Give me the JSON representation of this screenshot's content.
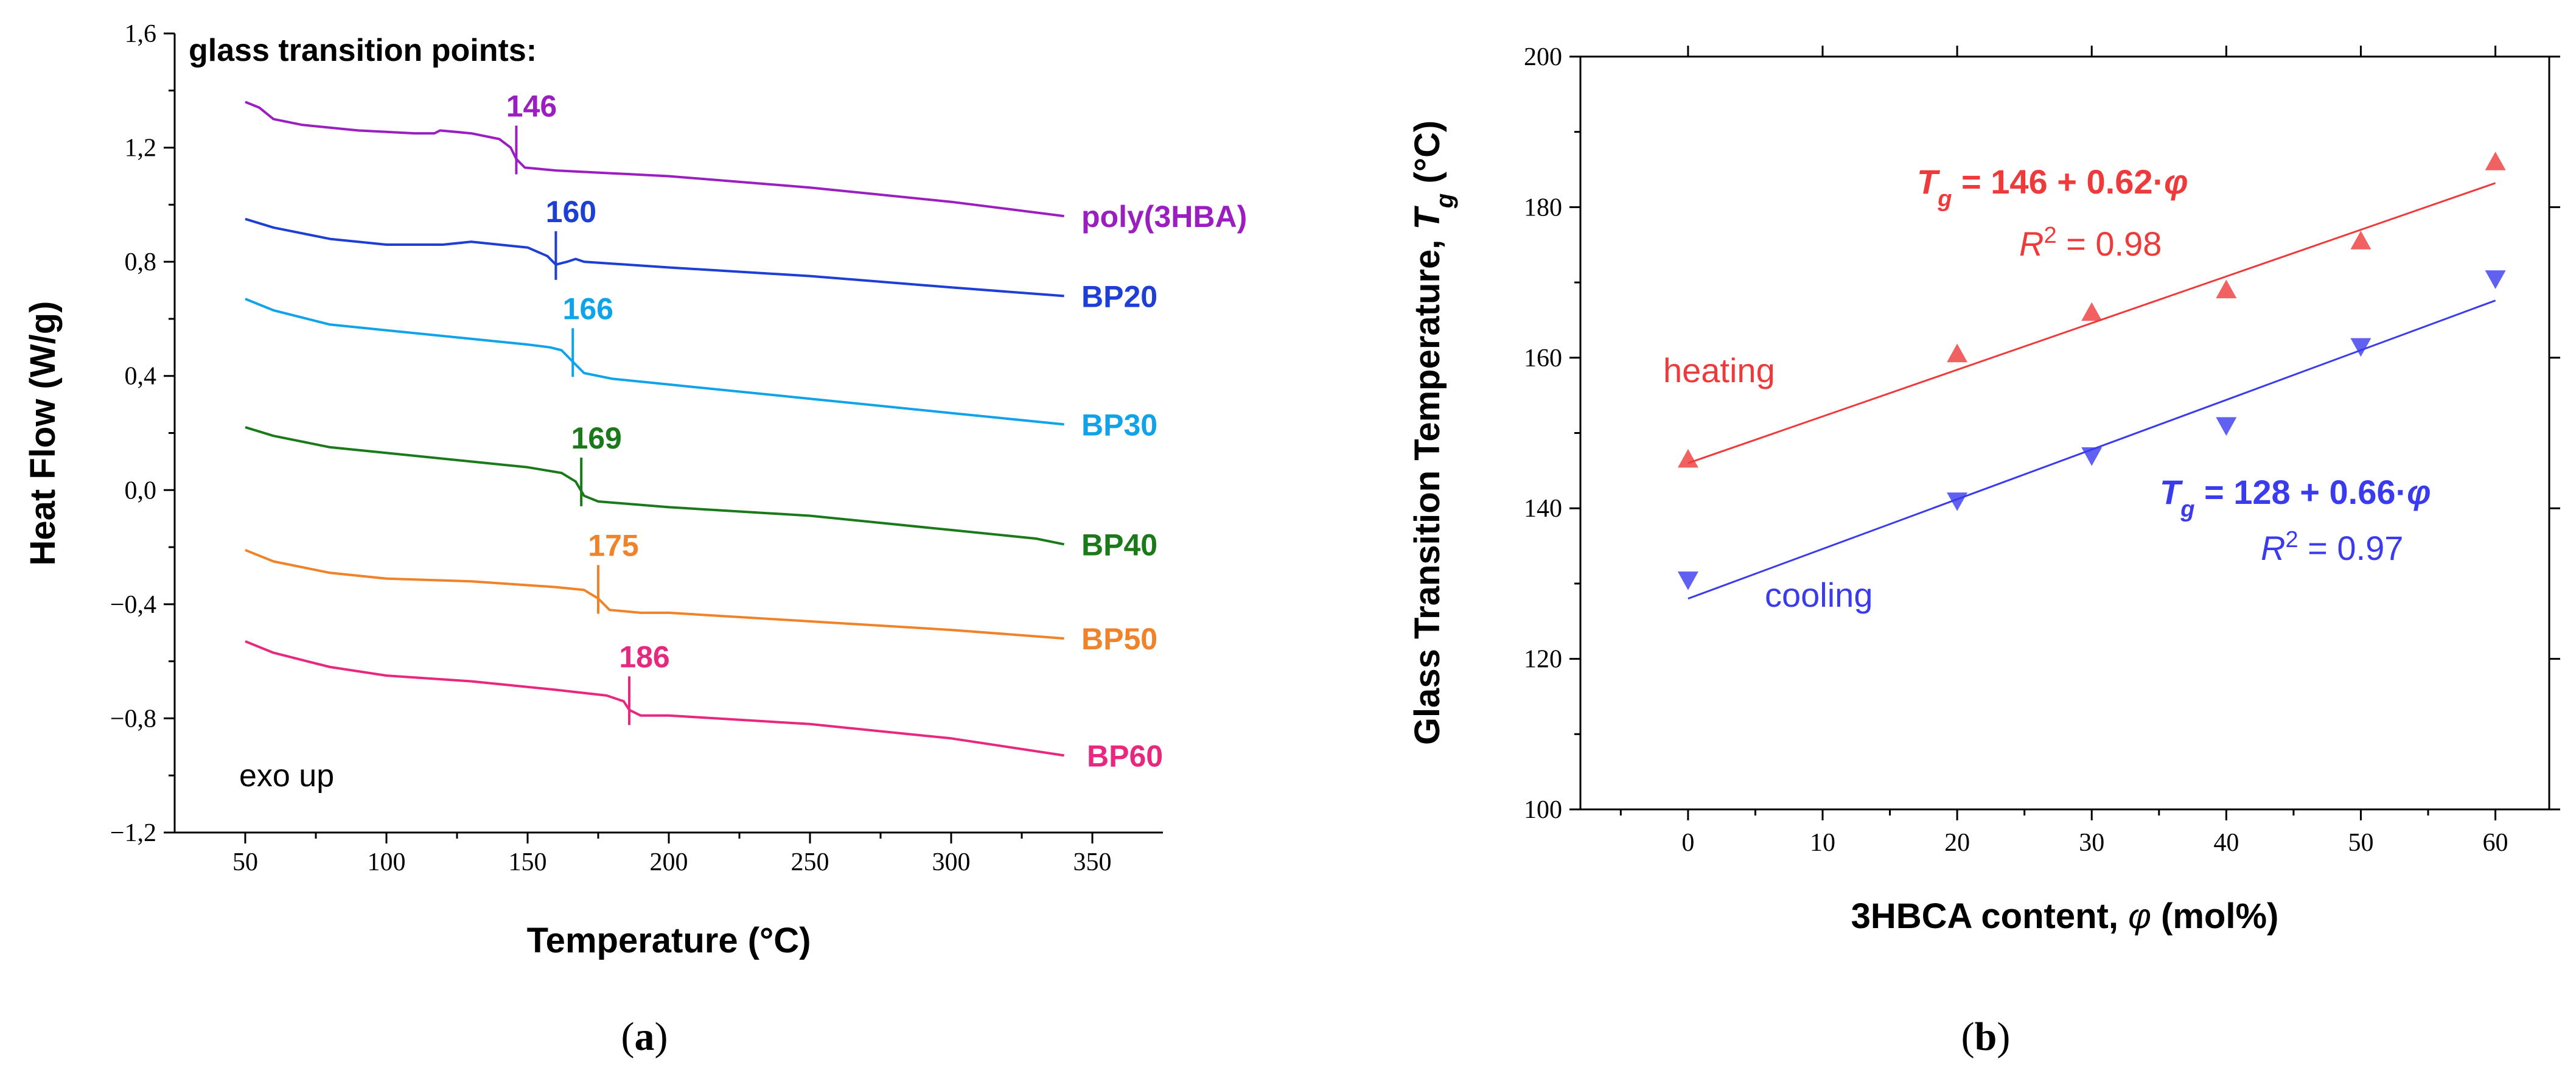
{
  "chart_data": [
    {
      "type": "line",
      "panel_label": "a",
      "title": "glass transition points:",
      "xlabel": "Temperature (°C)",
      "ylabel": "Heat Flow (W/g)",
      "xlim": [
        25,
        375
      ],
      "ylim": [
        -1.2,
        1.6
      ],
      "xticks": [
        50,
        100,
        150,
        200,
        250,
        300,
        350
      ],
      "yticks": [
        -1.2,
        -0.8,
        -0.4,
        0.0,
        0.4,
        0.8,
        1.2,
        1.6
      ],
      "ytick_labels": [
        "−1,2",
        "−0,8",
        "−0,4",
        "0,0",
        "0,4",
        "0,8",
        "1,2",
        "1,6"
      ],
      "annotation": "exo up",
      "series": [
        {
          "name": "poly(3HBA)",
          "color": "#9b1fc0",
          "tg": 146,
          "tg_label": "146",
          "points": [
            [
              50,
              1.36
            ],
            [
              55,
              1.34
            ],
            [
              60,
              1.3
            ],
            [
              70,
              1.28
            ],
            [
              90,
              1.26
            ],
            [
              110,
              1.25
            ],
            [
              117,
              1.25
            ],
            [
              119,
              1.26
            ],
            [
              130,
              1.25
            ],
            [
              140,
              1.23
            ],
            [
              144,
              1.2
            ],
            [
              146,
              1.16
            ],
            [
              149,
              1.13
            ],
            [
              160,
              1.12
            ],
            [
              200,
              1.1
            ],
            [
              250,
              1.06
            ],
            [
              300,
              1.01
            ],
            [
              340,
              0.96
            ]
          ]
        },
        {
          "name": "BP20",
          "color": "#1d3fd6",
          "tg": 160,
          "tg_label": "160",
          "points": [
            [
              50,
              0.95
            ],
            [
              60,
              0.92
            ],
            [
              80,
              0.88
            ],
            [
              100,
              0.86
            ],
            [
              120,
              0.86
            ],
            [
              130,
              0.87
            ],
            [
              140,
              0.86
            ],
            [
              150,
              0.85
            ],
            [
              157,
              0.82
            ],
            [
              160,
              0.79
            ],
            [
              164,
              0.8
            ],
            [
              167,
              0.81
            ],
            [
              170,
              0.8
            ],
            [
              200,
              0.78
            ],
            [
              250,
              0.75
            ],
            [
              300,
              0.71
            ],
            [
              340,
              0.68
            ]
          ]
        },
        {
          "name": "BP30",
          "color": "#11a3ea",
          "tg": 166,
          "tg_label": "166",
          "points": [
            [
              50,
              0.67
            ],
            [
              60,
              0.63
            ],
            [
              80,
              0.58
            ],
            [
              100,
              0.56
            ],
            [
              130,
              0.53
            ],
            [
              150,
              0.51
            ],
            [
              158,
              0.5
            ],
            [
              162,
              0.49
            ],
            [
              166,
              0.45
            ],
            [
              170,
              0.41
            ],
            [
              180,
              0.39
            ],
            [
              200,
              0.37
            ],
            [
              250,
              0.32
            ],
            [
              300,
              0.27
            ],
            [
              340,
              0.23
            ]
          ]
        },
        {
          "name": "BP40",
          "color": "#1a7a1a",
          "tg": 169,
          "tg_label": "169",
          "points": [
            [
              50,
              0.22
            ],
            [
              60,
              0.19
            ],
            [
              80,
              0.15
            ],
            [
              100,
              0.13
            ],
            [
              130,
              0.1
            ],
            [
              150,
              0.08
            ],
            [
              162,
              0.06
            ],
            [
              167,
              0.03
            ],
            [
              170,
              -0.02
            ],
            [
              175,
              -0.04
            ],
            [
              200,
              -0.06
            ],
            [
              250,
              -0.09
            ],
            [
              300,
              -0.14
            ],
            [
              330,
              -0.17
            ],
            [
              340,
              -0.19
            ]
          ]
        },
        {
          "name": "BP50",
          "color": "#f0822a",
          "tg": 175,
          "tg_label": "175",
          "points": [
            [
              50,
              -0.21
            ],
            [
              60,
              -0.25
            ],
            [
              80,
              -0.29
            ],
            [
              100,
              -0.31
            ],
            [
              130,
              -0.32
            ],
            [
              160,
              -0.34
            ],
            [
              170,
              -0.35
            ],
            [
              175,
              -0.38
            ],
            [
              179,
              -0.42
            ],
            [
              190,
              -0.43
            ],
            [
              200,
              -0.43
            ],
            [
              250,
              -0.46
            ],
            [
              300,
              -0.49
            ],
            [
              340,
              -0.52
            ]
          ]
        },
        {
          "name": "BP60",
          "color": "#e8277f",
          "tg": 186,
          "tg_label": "186",
          "points": [
            [
              50,
              -0.53
            ],
            [
              60,
              -0.57
            ],
            [
              80,
              -0.62
            ],
            [
              100,
              -0.65
            ],
            [
              130,
              -0.67
            ],
            [
              160,
              -0.7
            ],
            [
              178,
              -0.72
            ],
            [
              184,
              -0.74
            ],
            [
              186,
              -0.77
            ],
            [
              190,
              -0.79
            ],
            [
              200,
              -0.79
            ],
            [
              250,
              -0.82
            ],
            [
              300,
              -0.87
            ],
            [
              340,
              -0.93
            ]
          ]
        }
      ]
    },
    {
      "type": "scatter",
      "panel_label": "b",
      "xlabel_main": "3HBCA content, ",
      "xlabel_symbol": "φ",
      "xlabel_unit": " (mol%)",
      "ylabel_main": "Glass Transition Temperature, ",
      "ylabel_symbol": "T",
      "ylabel_sub": "g",
      "ylabel_unit": " (°C)",
      "xlim": [
        -8,
        64
      ],
      "ylim": [
        100,
        200
      ],
      "xticks": [
        0,
        10,
        20,
        30,
        40,
        50,
        60
      ],
      "yticks": [
        100,
        120,
        140,
        160,
        180,
        200
      ],
      "series": [
        {
          "name": "heating",
          "color": "#ee3a3a",
          "marker": "triangle-up",
          "x": [
            0,
            20,
            30,
            40,
            50,
            60
          ],
          "y": [
            146.5,
            160.5,
            166,
            169,
            175.5,
            186
          ],
          "fit": {
            "intercept": 146,
            "slope": 0.62,
            "x_range": [
              0,
              60
            ]
          },
          "equation": {
            "symbol": "T",
            "sub": "g",
            "rest": " = 146 + 0.62·",
            "var": "φ"
          },
          "r2": {
            "prefix": "R",
            "sup": "2",
            "rest": " = 0.98"
          }
        },
        {
          "name": "cooling",
          "color": "#3a3aee",
          "marker": "triangle-down",
          "x": [
            0,
            20,
            30,
            40,
            50,
            60
          ],
          "y": [
            130.5,
            141,
            147,
            151,
            161.5,
            170.5
          ],
          "fit": {
            "intercept": 128,
            "slope": 0.66,
            "x_range": [
              0,
              60
            ]
          },
          "equation": {
            "symbol": "T",
            "sub": "g",
            "rest": " = 128 + 0.66·",
            "var": "φ"
          },
          "r2": {
            "prefix": "R",
            "sup": "2",
            "rest": " = 0.97"
          }
        }
      ]
    }
  ],
  "colors": {
    "axis": "#000000",
    "heating_fit": "#ee3a3a",
    "cooling_fit": "#3a3aee"
  }
}
